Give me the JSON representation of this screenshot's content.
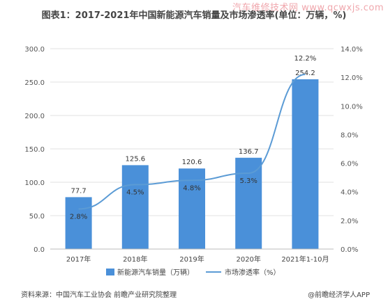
{
  "watermark_top": "汽车维修技术网 www.qcwxjs.com",
  "title": "图表1：2017-2021年中国新能源汽车销量及市场渗透率(单位：万辆，%)",
  "footer": {
    "source": "资料来源：中国汽车工业协会 前瞻产业研究院整理",
    "credit": "@前瞻经济学人APP"
  },
  "colors": {
    "bar": "#4a90d9",
    "line": "#4a90d9"
  },
  "chart_data": {
    "type": "bar",
    "categories": [
      "2017年",
      "2018年",
      "2019年",
      "2020年",
      "2021年1-10月"
    ],
    "series": [
      {
        "name": "新能源汽车销量（万辆）",
        "type": "bar",
        "axis": "left",
        "values": [
          77.7,
          125.6,
          120.6,
          136.7,
          254.2
        ],
        "labels": [
          "77.7",
          "125.6",
          "120.6",
          "136.7",
          "254.2"
        ]
      },
      {
        "name": "市场渗透率（%）",
        "type": "line",
        "axis": "right",
        "values": [
          2.8,
          4.5,
          4.8,
          5.3,
          12.2
        ],
        "labels": [
          "2.8%",
          "4.5%",
          "4.8%",
          "5.3%",
          "12.2%"
        ]
      }
    ],
    "left_axis": {
      "min": 0,
      "max": 300,
      "ticks": [
        "0.0",
        "50.0",
        "100.0",
        "150.0",
        "200.0",
        "250.0",
        "300.0"
      ]
    },
    "right_axis": {
      "min": 0,
      "max": 14,
      "ticks": [
        "0.0%",
        "2.0%",
        "4.0%",
        "6.0%",
        "8.0%",
        "10.0%",
        "12.0%",
        "14.0%"
      ]
    },
    "grid": true,
    "legend_position": "bottom"
  }
}
